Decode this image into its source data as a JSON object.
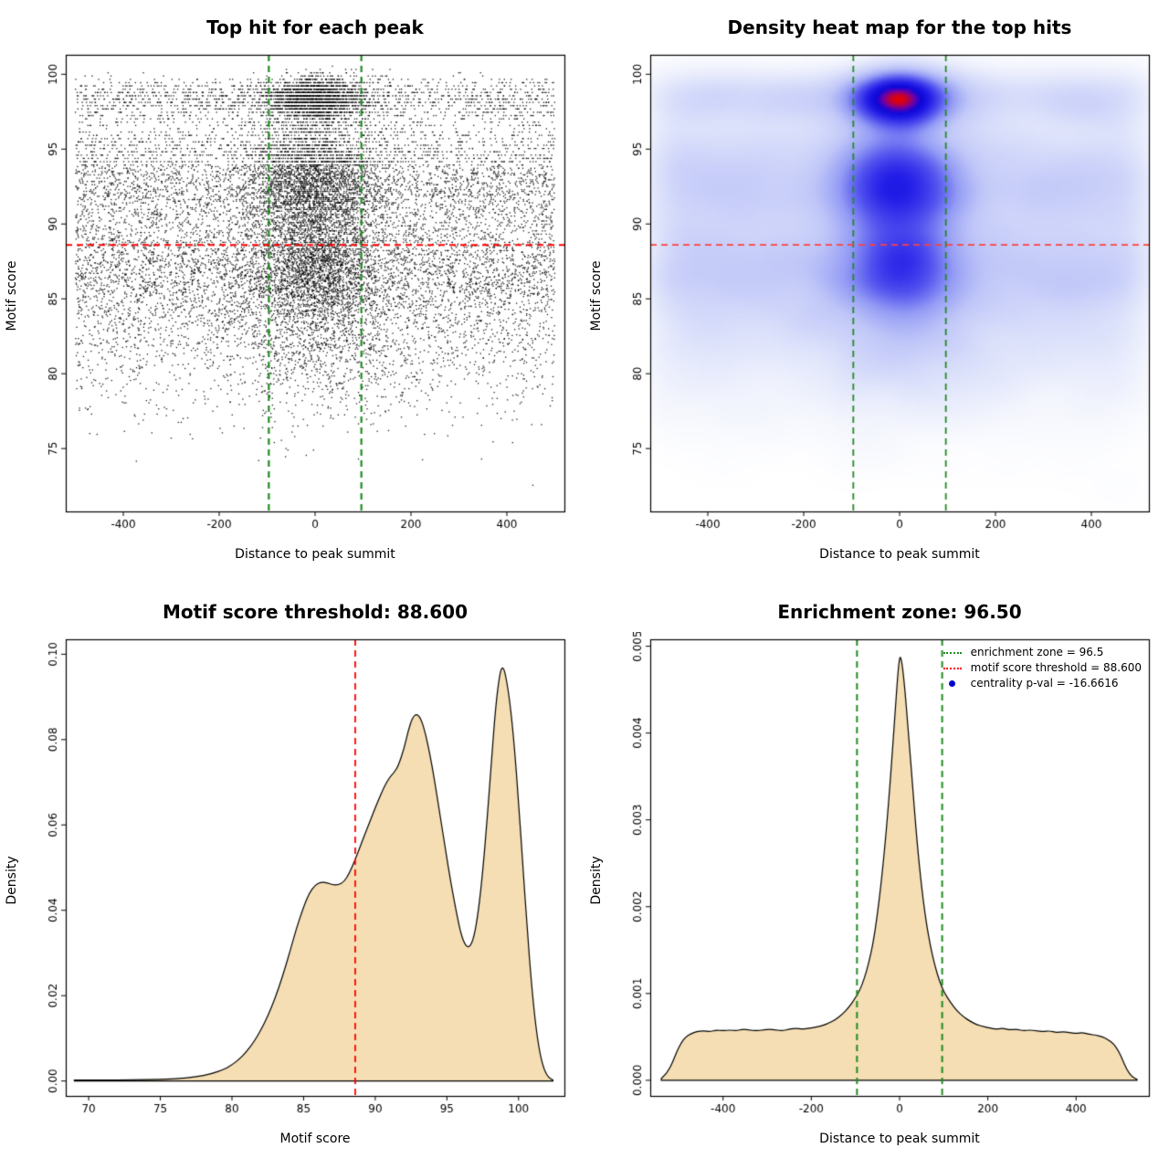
{
  "figure": {
    "background": "#FFFFFF",
    "layout": "2x2 R graphics panel"
  },
  "chart_data": [
    {
      "type": "scatter",
      "title": "Top hit for each peak",
      "xlabel": "Distance to peak summit",
      "ylabel": "Motif score",
      "xlim": [
        -520,
        520
      ],
      "ylim": [
        70.8,
        101.3
      ],
      "xticks": {
        "values": [
          -400,
          -200,
          0,
          200,
          400
        ],
        "labels": [
          "-400",
          "-200",
          "0",
          "200",
          "400"
        ]
      },
      "yticks": {
        "values": [
          75,
          80,
          85,
          90,
          95,
          100
        ],
        "labels": [
          "75",
          "80",
          "85",
          "90",
          "95",
          "100"
        ]
      },
      "point_color": "#000000",
      "points": {
        "n": 18000,
        "seed": 42,
        "x_half": 500,
        "score_min": 71,
        "score_max": 100.45,
        "score_mixture": [
          {
            "weight": 0.18,
            "mean": 98.35,
            "sd": 0.75,
            "max": 100.45,
            "center_prob": 0.55,
            "center_sd": 50
          },
          {
            "weight": 0.32,
            "mean": 92.4,
            "sd": 1.9,
            "center_prob": 0.42,
            "center_sd": 70
          },
          {
            "weight": 0.05,
            "mean": 95.4,
            "sd": 1.2,
            "center_prob": 0.4,
            "center_sd": 70
          },
          {
            "weight": 0.26,
            "mean": 87.2,
            "sd": 1.9,
            "center_prob": 0.36,
            "center_sd": 65
          },
          {
            "weight": 0.19,
            "mean": 83.3,
            "sd": 3.1,
            "min": 71,
            "center_prob": 0.27,
            "center_sd": 90
          }
        ],
        "quantize": [
          {
            "from": 94,
            "step": 0.22
          },
          {
            "from": 88,
            "step": 0.11
          },
          {
            "from": -999,
            "step": 0.05
          }
        ]
      },
      "lines": [
        {
          "orient": "v",
          "at": -96.5,
          "color": "#228B22",
          "dash": "dashed",
          "width": 2.2
        },
        {
          "orient": "v",
          "at": 96.5,
          "color": "#228B22",
          "dash": "dashed",
          "width": 2.2
        },
        {
          "orient": "h",
          "at": 88.6,
          "color": "#FF0000",
          "dash": "dashed",
          "width": 2
        }
      ]
    },
    {
      "type": "heatmap",
      "title": "Density heat map for the top hits",
      "xlabel": "Distance to peak summit",
      "ylabel": "Motif score",
      "xlim": [
        -520,
        520
      ],
      "ylim": [
        70.8,
        101.3
      ],
      "xticks": {
        "values": [
          -400,
          -200,
          0,
          200,
          400
        ],
        "labels": [
          "-400",
          "-200",
          "0",
          "200",
          "400"
        ]
      },
      "yticks": {
        "values": [
          75,
          80,
          85,
          90,
          95,
          100
        ],
        "labels": [
          "75",
          "80",
          "85",
          "90",
          "95",
          "100"
        ]
      },
      "source": "top_hits_points",
      "grid": [
        150,
        120
      ],
      "blur_sigma": [
        5.5,
        3.4
      ],
      "gamma": 0.55,
      "colormap": [
        [
          0,
          255,
          255,
          255
        ],
        [
          0.1,
          243,
          245,
          253
        ],
        [
          0.22,
          223,
          228,
          251
        ],
        [
          0.38,
          193,
          200,
          248
        ],
        [
          0.52,
          148,
          156,
          245
        ],
        [
          0.65,
          84,
          84,
          239
        ],
        [
          0.78,
          34,
          28,
          231
        ],
        [
          0.88,
          12,
          6,
          214
        ],
        [
          0.94,
          110,
          0,
          170
        ],
        [
          1,
          228,
          0,
          0
        ]
      ],
      "lines": [
        {
          "orient": "v",
          "at": -96.5,
          "color": "#228B22",
          "dash": "dashed",
          "width": 1.8
        },
        {
          "orient": "v",
          "at": 96.5,
          "color": "#228B22",
          "dash": "dashed",
          "width": 1.8
        },
        {
          "orient": "h",
          "at": 88.6,
          "color": "#FF4040",
          "dash": "dashed",
          "width": 1.8
        }
      ]
    },
    {
      "type": "density",
      "title": "Motif score threshold: 88.600",
      "xlabel": "Motif score",
      "ylabel": "Density",
      "xlim": [
        68.4,
        103.2
      ],
      "ylim": [
        -0.0035,
        0.1035
      ],
      "xticks": {
        "values": [
          70,
          75,
          80,
          85,
          90,
          95,
          100
        ],
        "labels": [
          "70",
          "75",
          "80",
          "85",
          "90",
          "95",
          "100"
        ]
      },
      "yticks": {
        "values": [
          0,
          0.02,
          0.04,
          0.06,
          0.08,
          0.1
        ],
        "labels": [
          "0.00",
          "0.02",
          "0.04",
          "0.06",
          "0.08",
          "0.10"
        ]
      },
      "fill": "#F5DEB3",
      "curve": [
        [
          69,
          0.0002
        ],
        [
          71,
          0.00022
        ],
        [
          73,
          0.00028
        ],
        [
          75,
          0.0004
        ],
        [
          76.5,
          0.0006
        ],
        [
          77.5,
          0.001
        ],
        [
          78.5,
          0.0016
        ],
        [
          79.5,
          0.0028
        ],
        [
          80,
          0.0038
        ],
        [
          80.5,
          0.0051
        ],
        [
          81,
          0.0068
        ],
        [
          81.5,
          0.009
        ],
        [
          82,
          0.0118
        ],
        [
          82.5,
          0.0152
        ],
        [
          83,
          0.0193
        ],
        [
          83.5,
          0.0242
        ],
        [
          84,
          0.0298
        ],
        [
          84.5,
          0.0358
        ],
        [
          85,
          0.0408
        ],
        [
          85.4,
          0.0441
        ],
        [
          85.8,
          0.0459
        ],
        [
          86.2,
          0.0466
        ],
        [
          86.6,
          0.0465
        ],
        [
          87,
          0.046
        ],
        [
          87.4,
          0.0459
        ],
        [
          87.8,
          0.0466
        ],
        [
          88.2,
          0.0487
        ],
        [
          88.6,
          0.0519
        ],
        [
          89,
          0.0554
        ],
        [
          89.4,
          0.0589
        ],
        [
          89.8,
          0.0623
        ],
        [
          90.2,
          0.0657
        ],
        [
          90.6,
          0.0688
        ],
        [
          91,
          0.0712
        ],
        [
          91.3,
          0.0722
        ],
        [
          91.6,
          0.0738
        ],
        [
          92,
          0.0778
        ],
        [
          92.3,
          0.0821
        ],
        [
          92.6,
          0.0852
        ],
        [
          92.9,
          0.0861
        ],
        [
          93.2,
          0.0848
        ],
        [
          93.5,
          0.0815
        ],
        [
          93.8,
          0.0768
        ],
        [
          94.1,
          0.0712
        ],
        [
          94.5,
          0.0628
        ],
        [
          94.9,
          0.0542
        ],
        [
          95.3,
          0.046
        ],
        [
          95.7,
          0.0389
        ],
        [
          96,
          0.0342
        ],
        [
          96.3,
          0.0317
        ],
        [
          96.6,
          0.0313
        ],
        [
          96.9,
          0.0338
        ],
        [
          97.2,
          0.0398
        ],
        [
          97.5,
          0.049
        ],
        [
          97.8,
          0.061
        ],
        [
          98.1,
          0.0745
        ],
        [
          98.4,
          0.0878
        ],
        [
          98.7,
          0.0958
        ],
        [
          98.9,
          0.0972
        ],
        [
          99.1,
          0.0952
        ],
        [
          99.4,
          0.0888
        ],
        [
          99.7,
          0.0788
        ],
        [
          100,
          0.0655
        ],
        [
          100.3,
          0.0505
        ],
        [
          100.6,
          0.0358
        ],
        [
          100.9,
          0.0228
        ],
        [
          101.2,
          0.0128
        ],
        [
          101.5,
          0.0062
        ],
        [
          101.8,
          0.0025
        ],
        [
          102.1,
          0.0008
        ],
        [
          102.4,
          0.0002
        ]
      ],
      "lines": [
        {
          "orient": "v",
          "at": 88.6,
          "color": "#FF0000",
          "dash": "dashed",
          "width": 1.8
        }
      ]
    },
    {
      "type": "density",
      "title": "Enrichment zone: 96.50",
      "xlabel": "Distance to peak summit",
      "ylabel": "Density",
      "xlim": [
        -565,
        565
      ],
      "ylim": [
        -0.00018,
        0.00508
      ],
      "xticks": {
        "values": [
          -400,
          -200,
          0,
          200,
          400
        ],
        "labels": [
          "-400",
          "-200",
          "0",
          "200",
          "400"
        ]
      },
      "yticks": {
        "values": [
          0,
          0.001,
          0.002,
          0.003,
          0.004,
          0.005
        ],
        "labels": [
          "0.000",
          "0.001",
          "0.002",
          "0.003",
          "0.004",
          "0.005"
        ]
      },
      "fill": "#F5DEB3",
      "curve": [
        [
          -540,
          2e-05
        ],
        [
          -527,
          8e-05
        ],
        [
          -515,
          0.0002
        ],
        [
          -505,
          0.00033
        ],
        [
          -495,
          0.00043
        ],
        [
          -485,
          0.0005
        ],
        [
          -472,
          0.00054
        ],
        [
          -460,
          0.00056
        ],
        [
          -445,
          0.00057
        ],
        [
          -430,
          0.00056
        ],
        [
          -415,
          0.00058
        ],
        [
          -400,
          0.00057
        ],
        [
          -385,
          0.00058
        ],
        [
          -370,
          0.00057
        ],
        [
          -355,
          0.00059
        ],
        [
          -340,
          0.00058
        ],
        [
          -325,
          0.00057
        ],
        [
          -310,
          0.00058
        ],
        [
          -295,
          0.00059
        ],
        [
          -280,
          0.00058
        ],
        [
          -265,
          0.00057
        ],
        [
          -250,
          0.00059
        ],
        [
          -235,
          0.0006
        ],
        [
          -220,
          0.00059
        ],
        [
          -205,
          0.0006
        ],
        [
          -190,
          0.00061
        ],
        [
          -175,
          0.00063
        ],
        [
          -160,
          0.00066
        ],
        [
          -145,
          0.0007
        ],
        [
          -130,
          0.00076
        ],
        [
          -115,
          0.00084
        ],
        [
          -100,
          0.00095
        ],
        [
          -90,
          0.00104
        ],
        [
          -80,
          0.00117
        ],
        [
          -70,
          0.00135
        ],
        [
          -60,
          0.00158
        ],
        [
          -50,
          0.00192
        ],
        [
          -40,
          0.00235
        ],
        [
          -30,
          0.00288
        ],
        [
          -20,
          0.00352
        ],
        [
          -10,
          0.00425
        ],
        [
          -4,
          0.00468
        ],
        [
          0,
          0.00488
        ],
        [
          4,
          0.00486
        ],
        [
          10,
          0.00462
        ],
        [
          20,
          0.00402
        ],
        [
          30,
          0.00335
        ],
        [
          40,
          0.00272
        ],
        [
          50,
          0.00222
        ],
        [
          60,
          0.00183
        ],
        [
          70,
          0.00154
        ],
        [
          80,
          0.00132
        ],
        [
          90,
          0.00115
        ],
        [
          100,
          0.00102
        ],
        [
          115,
          0.0009
        ],
        [
          130,
          0.0008
        ],
        [
          145,
          0.00073
        ],
        [
          160,
          0.00068
        ],
        [
          175,
          0.00064
        ],
        [
          190,
          0.00062
        ],
        [
          205,
          0.0006
        ],
        [
          220,
          0.00059
        ],
        [
          235,
          0.0006
        ],
        [
          250,
          0.00058
        ],
        [
          265,
          0.00059
        ],
        [
          280,
          0.00057
        ],
        [
          295,
          0.00058
        ],
        [
          310,
          0.00057
        ],
        [
          325,
          0.00056
        ],
        [
          340,
          0.00057
        ],
        [
          355,
          0.00055
        ],
        [
          370,
          0.00056
        ],
        [
          385,
          0.00055
        ],
        [
          400,
          0.00054
        ],
        [
          415,
          0.00055
        ],
        [
          430,
          0.00053
        ],
        [
          445,
          0.00052
        ],
        [
          460,
          0.0005
        ],
        [
          472,
          0.00047
        ],
        [
          485,
          0.00042
        ],
        [
          495,
          0.00035
        ],
        [
          505,
          0.00024
        ],
        [
          515,
          0.00012
        ],
        [
          527,
          4e-05
        ],
        [
          538,
          1e-05
        ]
      ],
      "lines": [
        {
          "orient": "v",
          "at": -96.5,
          "color": "#228B22",
          "dash": "dashed",
          "width": 2
        },
        {
          "orient": "v",
          "at": 96.5,
          "color": "#228B22",
          "dash": "dashed",
          "width": 2
        }
      ],
      "legend": {
        "items": [
          {
            "symbol": "dotted-line",
            "color": "#228B22",
            "label": "enrichment zone = 96.5"
          },
          {
            "symbol": "dotted-line",
            "color": "#FF0000",
            "label": "motif score threshold = 88.600"
          },
          {
            "symbol": "dot",
            "color": "#0000CD",
            "label": "centrality p-val = -16.6616"
          }
        ]
      }
    }
  ]
}
